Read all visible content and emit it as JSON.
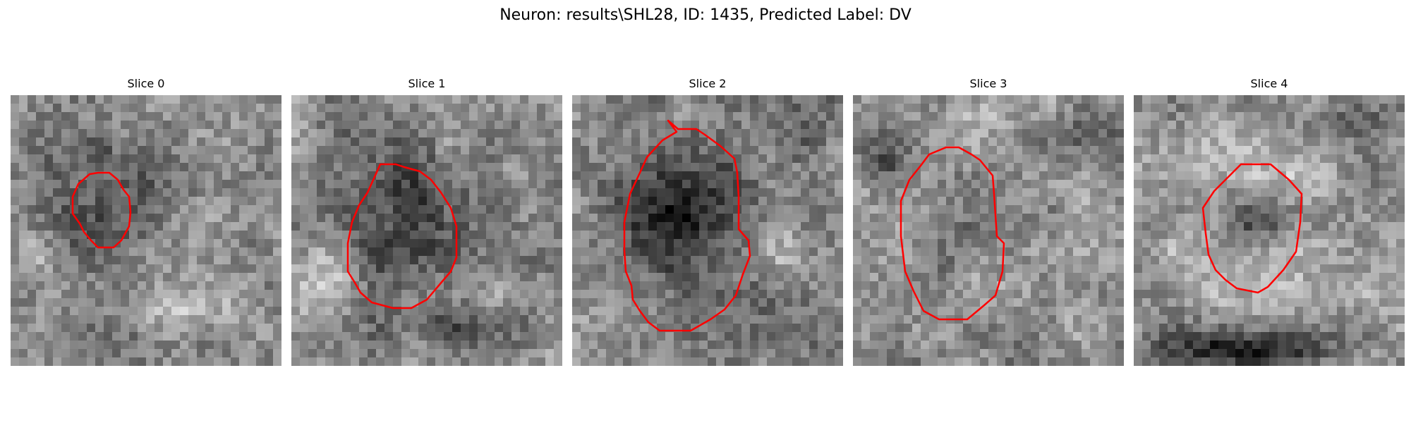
{
  "figure": {
    "title": "Neuron: results\\SHL28, ID: 1435, Predicted Label: DV"
  },
  "panels": [
    {
      "title": "Slice 0"
    },
    {
      "title": "Slice 1"
    },
    {
      "title": "Slice 2"
    },
    {
      "title": "Slice 3"
    },
    {
      "title": "Slice 4"
    }
  ],
  "colors": {
    "contour": "#ff0000",
    "background": "#ffffff"
  }
}
